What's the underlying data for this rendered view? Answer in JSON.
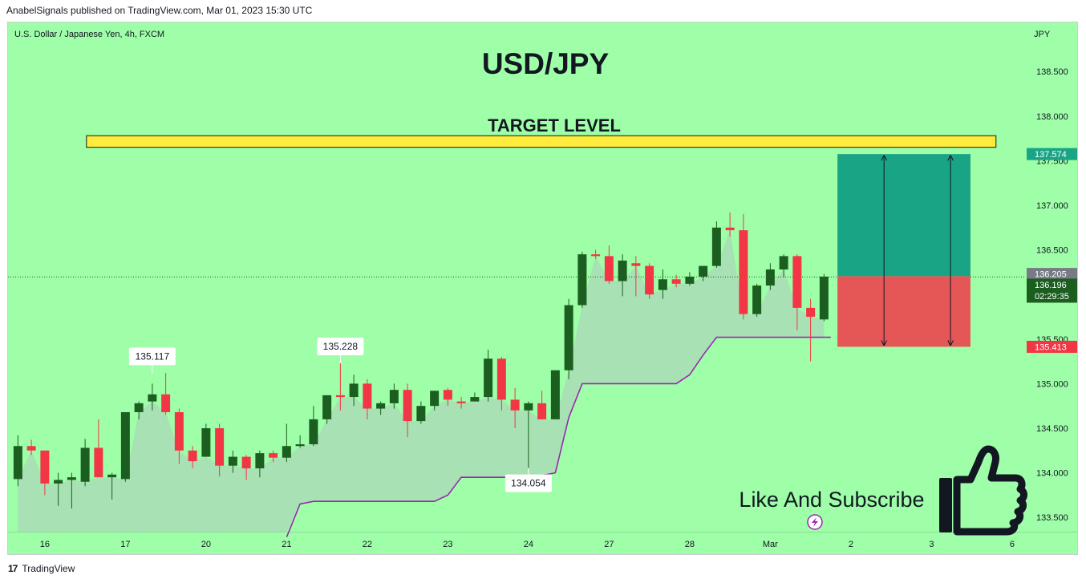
{
  "publisher_line": "AnabelSignals published on TradingView.com, Mar 01, 2023 15:30 UTC",
  "footer": {
    "brand": "TradingView",
    "logo_glyph": "17"
  },
  "symbol_description": "U.S. Dollar / Japanese Yen, 4h, FXCM",
  "currency": "JPY",
  "colors": {
    "background": "#9effa8",
    "bull": "#1b5e20",
    "bear": "#f23645",
    "stop_line": "#9c27b0",
    "area_fill": "#a9dfb4",
    "target_box": "#ffeb3b",
    "profit_zone": "#19a585",
    "loss_zone": "#e55757",
    "tag_target": "#19a585",
    "tag_stop": "#f23645",
    "tag_prev": "#787b86",
    "tag_last": "#1b5e20"
  },
  "annotations": {
    "title": "USD/JPY",
    "target_label": "TARGET LEVEL",
    "cta": "Like And Subscribe",
    "cta_icon": "thumbs-up-icon",
    "badge_icon": "lightning-icon"
  },
  "chart_data": {
    "type": "candlestick",
    "timeframe": "4h",
    "y_axis": {
      "range": [
        133.34,
        139.05
      ],
      "ticks": [
        "133.500",
        "134.000",
        "134.500",
        "135.000",
        "135.500",
        "136.000",
        "136.500",
        "137.000",
        "137.500",
        "138.000",
        "138.500"
      ],
      "position": "right"
    },
    "x_axis": {
      "ticks": [
        {
          "label": "16",
          "bar": 2.5
        },
        {
          "label": "17",
          "bar": 8.5
        },
        {
          "label": "20",
          "bar": 14.5
        },
        {
          "label": "21",
          "bar": 20.5
        },
        {
          "label": "22",
          "bar": 26.5
        },
        {
          "label": "23",
          "bar": 32.5
        },
        {
          "label": "24",
          "bar": 38.5
        },
        {
          "label": "27",
          "bar": 44.5
        },
        {
          "label": "28",
          "bar": 50.5
        },
        {
          "label": "Mar",
          "bar": 56.5
        },
        {
          "label": "2",
          "bar": 62.5
        },
        {
          "label": "3",
          "bar": 68.5
        },
        {
          "label": "6",
          "bar": 74.5
        }
      ]
    },
    "candles": [
      [
        133.93,
        134.42,
        133.85,
        134.3
      ],
      [
        134.3,
        134.37,
        134.2,
        134.25
      ],
      [
        134.25,
        134.25,
        133.75,
        133.88
      ],
      [
        133.88,
        134.0,
        133.63,
        133.92
      ],
      [
        133.92,
        134.0,
        133.6,
        133.95
      ],
      [
        133.9,
        134.38,
        133.85,
        134.28
      ],
      [
        134.28,
        134.6,
        133.95,
        133.95
      ],
      [
        133.95,
        134.0,
        133.7,
        133.98
      ],
      [
        133.93,
        134.68,
        133.9,
        134.68
      ],
      [
        134.68,
        134.8,
        134.6,
        134.78
      ],
      [
        134.8,
        135.0,
        134.7,
        134.88
      ],
      [
        134.88,
        135.12,
        134.65,
        134.68
      ],
      [
        134.68,
        134.72,
        134.1,
        134.25
      ],
      [
        134.25,
        134.3,
        134.05,
        134.13
      ],
      [
        134.18,
        134.55,
        134.18,
        134.5
      ],
      [
        134.5,
        134.55,
        133.96,
        134.08
      ],
      [
        134.08,
        134.25,
        134.0,
        134.18
      ],
      [
        134.18,
        134.2,
        133.92,
        134.05
      ],
      [
        134.05,
        134.25,
        133.95,
        134.22
      ],
      [
        134.22,
        134.25,
        134.12,
        134.17
      ],
      [
        134.17,
        134.55,
        134.12,
        134.3
      ],
      [
        134.3,
        134.42,
        134.28,
        134.32
      ],
      [
        134.32,
        134.75,
        134.3,
        134.6
      ],
      [
        134.6,
        134.87,
        134.55,
        134.87
      ],
      [
        134.87,
        135.23,
        134.7,
        134.85
      ],
      [
        134.85,
        135.1,
        134.75,
        135.0
      ],
      [
        135.0,
        135.05,
        134.6,
        134.72
      ],
      [
        134.72,
        134.8,
        134.65,
        134.78
      ],
      [
        134.78,
        135.0,
        134.72,
        134.93
      ],
      [
        134.93,
        135.0,
        134.4,
        134.58
      ],
      [
        134.58,
        134.8,
        134.55,
        134.75
      ],
      [
        134.75,
        134.92,
        134.7,
        134.92
      ],
      [
        134.93,
        134.95,
        134.75,
        134.82
      ],
      [
        134.8,
        134.85,
        134.72,
        134.78
      ],
      [
        134.8,
        134.9,
        134.8,
        134.85
      ],
      [
        134.85,
        135.38,
        134.8,
        135.28
      ],
      [
        135.28,
        135.3,
        134.7,
        134.82
      ],
      [
        134.82,
        134.95,
        134.5,
        134.7
      ],
      [
        134.7,
        134.8,
        134.05,
        134.78
      ],
      [
        134.78,
        134.92,
        134.6,
        134.6
      ],
      [
        134.6,
        135.15,
        134.6,
        135.15
      ],
      [
        135.15,
        135.95,
        135.05,
        135.88
      ],
      [
        135.88,
        136.48,
        135.85,
        136.45
      ],
      [
        136.45,
        136.5,
        136.4,
        136.43
      ],
      [
        136.43,
        136.55,
        136.12,
        136.15
      ],
      [
        136.15,
        136.45,
        135.98,
        136.38
      ],
      [
        136.35,
        136.43,
        135.98,
        136.32
      ],
      [
        136.32,
        136.35,
        135.95,
        136.0
      ],
      [
        136.05,
        136.28,
        135.95,
        136.17
      ],
      [
        136.17,
        136.22,
        136.08,
        136.12
      ],
      [
        136.12,
        136.25,
        136.1,
        136.2
      ],
      [
        136.2,
        136.28,
        136.15,
        136.32
      ],
      [
        136.32,
        136.82,
        136.3,
        136.75
      ],
      [
        136.75,
        136.92,
        136.65,
        136.72
      ],
      [
        136.72,
        136.9,
        135.72,
        135.78
      ],
      [
        135.78,
        136.12,
        135.75,
        136.1
      ],
      [
        136.1,
        136.35,
        136.05,
        136.28
      ],
      [
        136.28,
        136.45,
        136.2,
        136.43
      ],
      [
        136.43,
        136.45,
        135.6,
        135.85
      ],
      [
        135.85,
        135.95,
        135.25,
        135.75
      ],
      [
        135.72,
        136.23,
        135.7,
        136.2
      ]
    ],
    "trailing_stop": [
      [
        20.5,
        133.28
      ],
      [
        21.5,
        133.65
      ],
      [
        22.5,
        133.68
      ],
      [
        31.5,
        133.68
      ],
      [
        32.5,
        133.75
      ],
      [
        33.5,
        133.95
      ],
      [
        37.5,
        133.95
      ],
      [
        38.5,
        133.95
      ],
      [
        39.5,
        133.97
      ],
      [
        40.5,
        134.0
      ],
      [
        41.5,
        134.62
      ],
      [
        42.5,
        135.0
      ],
      [
        49.5,
        135.0
      ],
      [
        50.5,
        135.1
      ],
      [
        51.5,
        135.32
      ],
      [
        52.5,
        135.52
      ],
      [
        61,
        135.52
      ]
    ],
    "trailing_stop_visible_from": 20.5,
    "labels": [
      {
        "text": "135.117",
        "bar": 10.5,
        "price": 135.117,
        "side": "above"
      },
      {
        "text": "135.228",
        "bar": 24.5,
        "price": 135.228,
        "side": "above"
      },
      {
        "text": "134.054",
        "bar": 38.5,
        "price": 134.054,
        "side": "below"
      }
    ],
    "target_level": {
      "from_bar": 5.6,
      "to_bar": 73.3,
      "top": 137.78,
      "bottom": 137.65
    },
    "position": {
      "from_bar": 61.5,
      "to_bar": 71.4,
      "entry": 136.205,
      "target": 137.574,
      "stop": 135.413
    },
    "last_price_line": 136.196,
    "price_tags": [
      {
        "text": "137.574",
        "price": 137.574,
        "kind": "target"
      },
      {
        "text": "136.205",
        "price": 136.23,
        "kind": "prev"
      },
      {
        "text": "136.196",
        "price": 136.11,
        "kind": "last",
        "sub": "02:29:35"
      },
      {
        "text": "135.413",
        "price": 135.413,
        "kind": "stop"
      }
    ]
  }
}
